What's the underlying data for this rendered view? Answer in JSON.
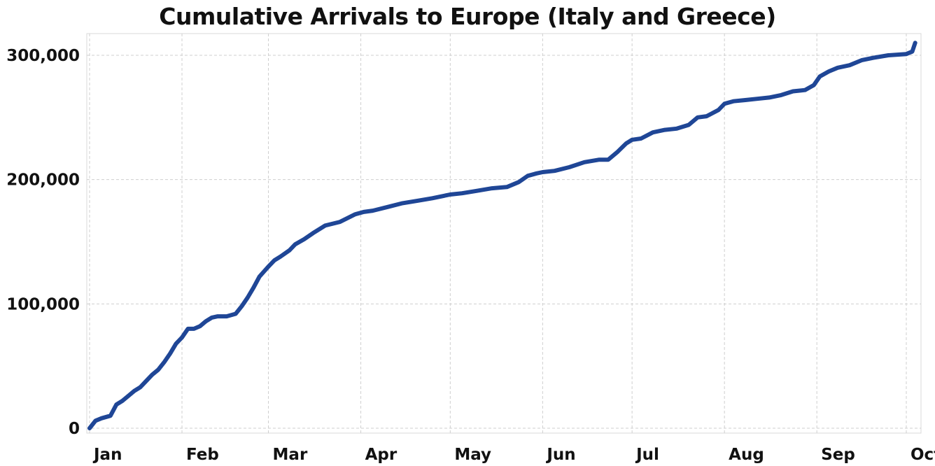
{
  "chart_data": {
    "type": "line",
    "title": "Cumulative Arrivals to Europe (Italy and Greece)",
    "xlabel": "",
    "ylabel": "",
    "ylim": [
      0,
      300000
    ],
    "yticks": [
      0,
      100000,
      200000,
      300000
    ],
    "ytick_labels": [
      "0",
      "100,000",
      "200,000",
      "300,000"
    ],
    "xlim": [
      "2016-01-01",
      "2016-10-05"
    ],
    "xticks": [
      "2016-01-01",
      "2016-02-01",
      "2016-03-01",
      "2016-04-01",
      "2016-05-01",
      "2016-06-01",
      "2016-07-01",
      "2016-08-01",
      "2016-09-01",
      "2016-10-01"
    ],
    "xtick_labels": [
      "Jan",
      "Feb",
      "Mar",
      "Apr",
      "May",
      "Jun",
      "Jul",
      "Aug",
      "Sep",
      "Oct"
    ],
    "grid": true,
    "series": [
      {
        "color": "#1f4696",
        "x": [
          "2016-01-01",
          "2016-01-03",
          "2016-01-05",
          "2016-01-08",
          "2016-01-10",
          "2016-01-12",
          "2016-01-14",
          "2016-01-16",
          "2016-01-18",
          "2016-01-20",
          "2016-01-22",
          "2016-01-24",
          "2016-01-26",
          "2016-01-28",
          "2016-01-30",
          "2016-02-01",
          "2016-02-03",
          "2016-02-05",
          "2016-02-07",
          "2016-02-09",
          "2016-02-11",
          "2016-02-13",
          "2016-02-16",
          "2016-02-19",
          "2016-02-21",
          "2016-02-23",
          "2016-02-25",
          "2016-02-27",
          "2016-03-01",
          "2016-03-03",
          "2016-03-05",
          "2016-03-08",
          "2016-03-10",
          "2016-03-13",
          "2016-03-16",
          "2016-03-20",
          "2016-03-25",
          "2016-03-30",
          "2016-04-02",
          "2016-04-05",
          "2016-04-10",
          "2016-04-15",
          "2016-04-20",
          "2016-04-25",
          "2016-05-01",
          "2016-05-05",
          "2016-05-10",
          "2016-05-15",
          "2016-05-20",
          "2016-05-24",
          "2016-05-27",
          "2016-05-30",
          "2016-06-01",
          "2016-06-05",
          "2016-06-10",
          "2016-06-15",
          "2016-06-20",
          "2016-06-23",
          "2016-06-26",
          "2016-06-29",
          "2016-07-01",
          "2016-07-04",
          "2016-07-08",
          "2016-07-12",
          "2016-07-16",
          "2016-07-20",
          "2016-07-23",
          "2016-07-26",
          "2016-07-30",
          "2016-08-01",
          "2016-08-04",
          "2016-08-08",
          "2016-08-12",
          "2016-08-16",
          "2016-08-20",
          "2016-08-24",
          "2016-08-28",
          "2016-08-31",
          "2016-09-02",
          "2016-09-05",
          "2016-09-08",
          "2016-09-12",
          "2016-09-16",
          "2016-09-20",
          "2016-09-25",
          "2016-10-01",
          "2016-10-03",
          "2016-10-04"
        ],
        "values": [
          0,
          6000,
          8000,
          10000,
          19000,
          22000,
          26000,
          30000,
          33000,
          38000,
          43000,
          47000,
          53000,
          60000,
          68000,
          73000,
          80000,
          80000,
          82000,
          86000,
          89000,
          90000,
          90000,
          92000,
          98000,
          105000,
          113000,
          122000,
          130000,
          135000,
          138000,
          143000,
          148000,
          152000,
          157000,
          163000,
          166000,
          172000,
          174000,
          175000,
          178000,
          181000,
          183000,
          185000,
          188000,
          189000,
          191000,
          193000,
          194000,
          198000,
          203000,
          205000,
          206000,
          207000,
          210000,
          214000,
          216000,
          216000,
          222000,
          229000,
          232000,
          233000,
          238000,
          240000,
          241000,
          244000,
          250000,
          251000,
          256000,
          261000,
          263000,
          264000,
          265000,
          266000,
          268000,
          271000,
          272000,
          276000,
          283000,
          287000,
          290000,
          292000,
          296000,
          298000,
          300000,
          301000,
          303000,
          310000
        ]
      }
    ]
  }
}
